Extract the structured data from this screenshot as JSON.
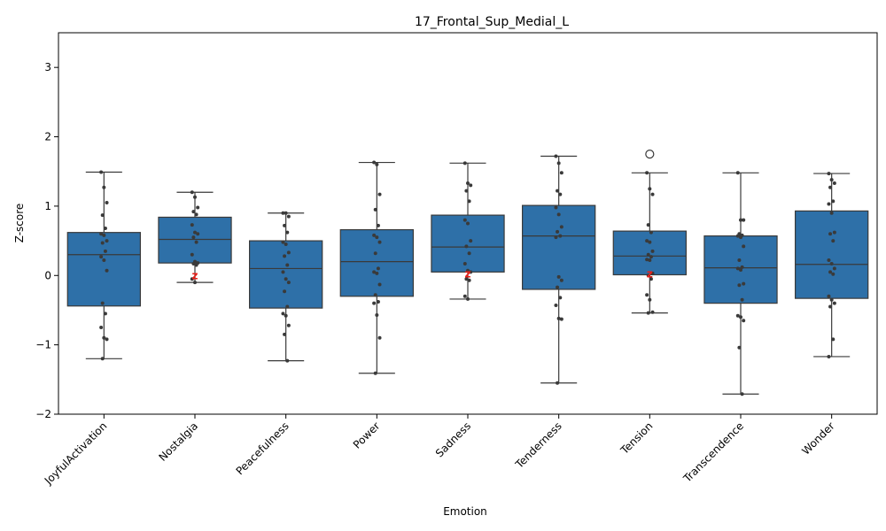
{
  "chart_data": {
    "type": "box",
    "title": "17_Frontal_Sup_Medial_L",
    "xlabel": "Emotion",
    "ylabel": "Z-score",
    "ylim": [
      -2,
      3.5
    ],
    "yticks": [
      -2,
      -1,
      0,
      1,
      2,
      3
    ],
    "ytick_labels": [
      "−2",
      "−1",
      "0",
      "1",
      "2",
      "3"
    ],
    "grid": false,
    "colors": {
      "box": "#2e70a8",
      "line": "#3a3a3a",
      "point": "#3a3a3a",
      "marker": "#e8201a"
    },
    "categories": [
      "JoyfulActivation",
      "Nostalgia",
      "Peacefulness",
      "Power",
      "Sadness",
      "Tenderness",
      "Tension",
      "Transcendence",
      "Wonder"
    ],
    "boxes": [
      {
        "whislo": -1.2,
        "q1": -0.44,
        "med": 0.3,
        "q3": 0.62,
        "whishi": 1.49,
        "fliers": [],
        "points": [
          1.49,
          1.27,
          1.05,
          0.87,
          0.68,
          0.6,
          0.58,
          0.5,
          0.47,
          0.35,
          0.27,
          0.22,
          0.07,
          -0.4,
          -0.55,
          -0.75,
          -0.9,
          -0.92,
          -1.2
        ]
      },
      {
        "whislo": -0.1,
        "q1": 0.18,
        "med": 0.52,
        "q3": 0.84,
        "whishi": 1.2,
        "fliers": [],
        "points": [
          1.2,
          1.13,
          0.98,
          0.92,
          0.88,
          0.73,
          0.62,
          0.6,
          0.55,
          0.48,
          0.3,
          0.2,
          0.18,
          0.17,
          0.15,
          -0.05,
          -0.1
        ]
      },
      {
        "whislo": -1.23,
        "q1": -0.47,
        "med": 0.1,
        "q3": 0.5,
        "whishi": 0.9,
        "fliers": [],
        "points": [
          0.9,
          0.9,
          0.85,
          0.72,
          0.62,
          0.48,
          0.45,
          0.33,
          0.28,
          0.15,
          0.05,
          -0.05,
          -0.1,
          -0.23,
          -0.45,
          -0.55,
          -0.58,
          -0.72,
          -0.85,
          -1.23
        ]
      },
      {
        "whislo": -1.41,
        "q1": -0.3,
        "med": 0.2,
        "q3": 0.66,
        "whishi": 1.63,
        "fliers": [],
        "points": [
          1.63,
          1.6,
          1.17,
          0.95,
          0.72,
          0.58,
          0.55,
          0.48,
          0.32,
          0.1,
          0.05,
          0.03,
          -0.13,
          -0.28,
          -0.38,
          -0.4,
          -0.57,
          -0.9,
          -1.41
        ]
      },
      {
        "whislo": -0.34,
        "q1": 0.05,
        "med": 0.41,
        "q3": 0.87,
        "whishi": 1.62,
        "fliers": [],
        "points": [
          1.62,
          1.33,
          1.3,
          1.22,
          1.07,
          0.8,
          0.75,
          0.5,
          0.42,
          0.32,
          0.17,
          0.07,
          0.05,
          -0.05,
          -0.07,
          -0.3,
          -0.34
        ]
      },
      {
        "whislo": -1.55,
        "q1": -0.2,
        "med": 0.57,
        "q3": 1.01,
        "whishi": 1.72,
        "fliers": [],
        "points": [
          1.72,
          1.62,
          1.48,
          1.22,
          1.17,
          0.98,
          0.88,
          0.7,
          0.63,
          0.57,
          0.55,
          -0.02,
          -0.07,
          -0.17,
          -0.32,
          -0.43,
          -0.62,
          -0.63,
          -1.55
        ]
      },
      {
        "whislo": -0.54,
        "q1": 0.01,
        "med": 0.28,
        "q3": 0.64,
        "whishi": 1.48,
        "fliers": [
          1.75
        ],
        "points": [
          1.48,
          1.25,
          1.17,
          0.73,
          0.62,
          0.5,
          0.48,
          0.35,
          0.3,
          0.27,
          0.23,
          0.22,
          0.03,
          0.0,
          -0.05,
          -0.28,
          -0.35,
          -0.53,
          -0.54
        ]
      },
      {
        "whislo": -1.71,
        "q1": -0.4,
        "med": 0.11,
        "q3": 0.57,
        "whishi": 1.48,
        "fliers": [],
        "points": [
          1.48,
          0.8,
          0.8,
          0.6,
          0.58,
          0.57,
          0.55,
          0.42,
          0.22,
          0.12,
          0.1,
          0.08,
          -0.12,
          -0.14,
          -0.35,
          -0.58,
          -0.6,
          -0.65,
          -1.04,
          -1.71
        ]
      },
      {
        "whislo": -1.17,
        "q1": -0.33,
        "med": 0.16,
        "q3": 0.93,
        "whishi": 1.47,
        "fliers": [],
        "points": [
          1.47,
          1.38,
          1.33,
          1.27,
          1.07,
          1.03,
          0.9,
          0.62,
          0.6,
          0.5,
          0.22,
          0.17,
          0.1,
          0.05,
          0.02,
          -0.3,
          -0.35,
          -0.4,
          -0.45,
          -0.92,
          -1.17
        ]
      }
    ],
    "annotations": [
      {
        "category": "Nostalgia",
        "label": "z",
        "y": 0.0
      },
      {
        "category": "Sadness",
        "label": "z",
        "y": 0.02
      },
      {
        "category": "Tension",
        "label": "z",
        "y": 0.02
      }
    ]
  }
}
